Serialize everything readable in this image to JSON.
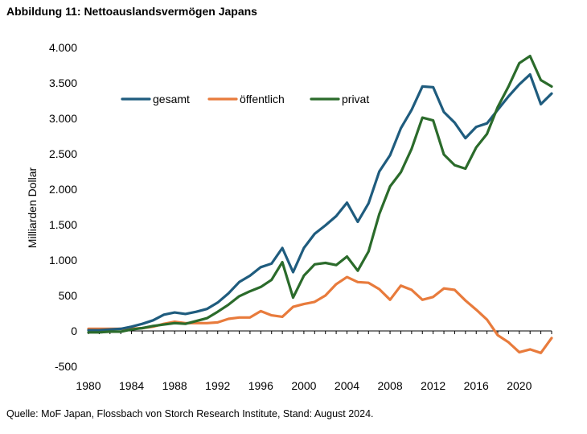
{
  "figure": {
    "title": "Abbildung 11: Nettoauslandsvermögen Japans",
    "source": "Quelle: MoF Japan, Flossbach von Storch Research Institute, Stand: August 2024."
  },
  "chart_data": {
    "type": "line",
    "ylabel": "Milliarden Dollar",
    "xlabel": "",
    "ylim": [
      -500,
      4000
    ],
    "xlim": [
      1980,
      2023
    ],
    "y_ticks": [
      -500,
      0,
      500,
      1000,
      1500,
      2000,
      2500,
      3000,
      3500,
      4000
    ],
    "y_tick_labels": [
      "-500",
      "0",
      "500",
      "1.000",
      "1.500",
      "2.000",
      "2.500",
      "3.000",
      "3.500",
      "4.000"
    ],
    "x_ticks": [
      1980,
      1984,
      1988,
      1992,
      1996,
      2000,
      2004,
      2008,
      2012,
      2016,
      2020
    ],
    "x_tick_labels": [
      "1980",
      "1984",
      "1988",
      "1992",
      "1996",
      "2000",
      "2004",
      "2008",
      "2012",
      "2016",
      "2020"
    ],
    "grid": false,
    "legend_position": "top-left",
    "x": [
      1980,
      1981,
      1982,
      1983,
      1984,
      1985,
      1986,
      1987,
      1988,
      1989,
      1990,
      1991,
      1992,
      1993,
      1994,
      1995,
      1996,
      1997,
      1998,
      1999,
      2000,
      2001,
      2002,
      2003,
      2004,
      2005,
      2006,
      2007,
      2008,
      2009,
      2010,
      2011,
      2012,
      2013,
      2014,
      2015,
      2016,
      2017,
      2018,
      2019,
      2020,
      2021,
      2022,
      2023
    ],
    "series": [
      {
        "name": "gesamt",
        "color": "#1F5C7E",
        "values": [
          10,
          10,
          20,
          30,
          60,
          100,
          150,
          230,
          260,
          240,
          270,
          310,
          400,
          530,
          690,
          780,
          900,
          950,
          1170,
          830,
          1170,
          1370,
          1490,
          1620,
          1810,
          1540,
          1800,
          2250,
          2480,
          2860,
          3120,
          3450,
          3440,
          3090,
          2940,
          2720,
          2880,
          2930,
          3120,
          3310,
          3480,
          3620,
          3200,
          3350
        ]
      },
      {
        "name": "öffentlich",
        "color": "#E87B3C",
        "values": [
          30,
          30,
          30,
          30,
          30,
          40,
          60,
          100,
          130,
          110,
          110,
          110,
          120,
          170,
          190,
          190,
          280,
          220,
          200,
          340,
          380,
          410,
          500,
          660,
          760,
          690,
          680,
          590,
          440,
          640,
          580,
          440,
          480,
          600,
          580,
          430,
          300,
          160,
          -60,
          -160,
          -300,
          -260,
          -310,
          -100
        ]
      },
      {
        "name": "privat",
        "color": "#2B6B2B",
        "values": [
          -20,
          -20,
          -10,
          -10,
          20,
          40,
          70,
          90,
          110,
          100,
          140,
          180,
          270,
          370,
          490,
          560,
          620,
          720,
          970,
          470,
          780,
          940,
          960,
          930,
          1050,
          850,
          1120,
          1650,
          2040,
          2240,
          2570,
          3010,
          2970,
          2490,
          2340,
          2290,
          2590,
          2780,
          3160,
          3450,
          3780,
          3880,
          3540,
          3450
        ]
      }
    ]
  }
}
